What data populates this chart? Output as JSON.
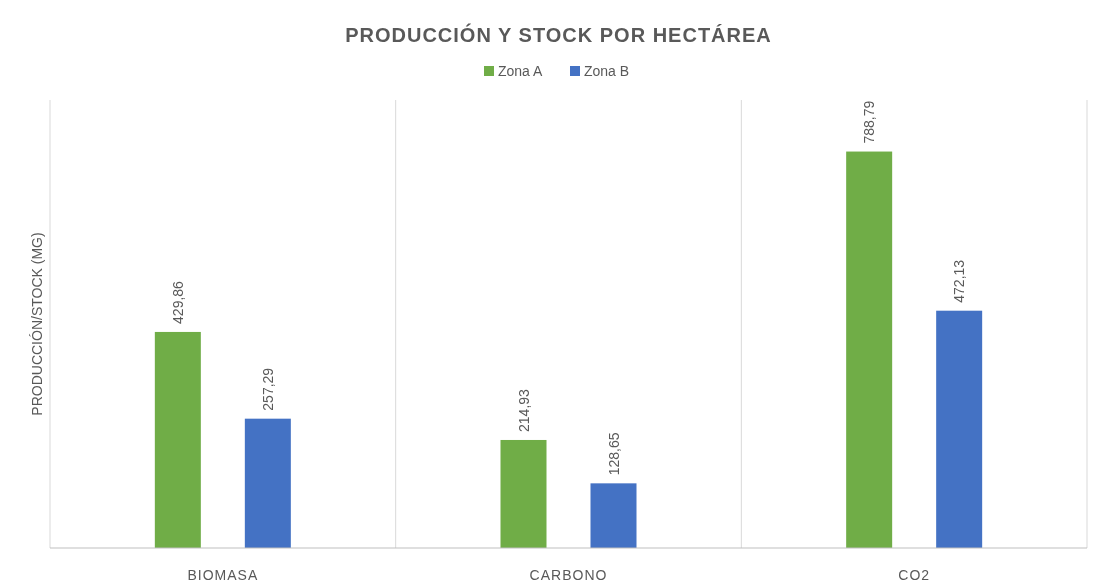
{
  "chart_data": {
    "type": "bar",
    "title": "PRODUCCIÓN Y STOCK POR HECTÁREA",
    "ylabel": "PRODUCCIÓN/STOCK (MG)",
    "categories": [
      "BIOMASA",
      "CARBONO",
      "CO2"
    ],
    "series": [
      {
        "name": "Zona A",
        "color": "#70ad47",
        "values": [
          429.86,
          214.93,
          788.79
        ],
        "value_labels": [
          "429,86",
          "214,93",
          "788,79"
        ]
      },
      {
        "name": "Zona B",
        "color": "#4472c4",
        "values": [
          257.29,
          128.65,
          472.13
        ],
        "value_labels": [
          "257,29",
          "128,65",
          "472,13"
        ]
      }
    ],
    "grid": "x",
    "legend": "top"
  }
}
